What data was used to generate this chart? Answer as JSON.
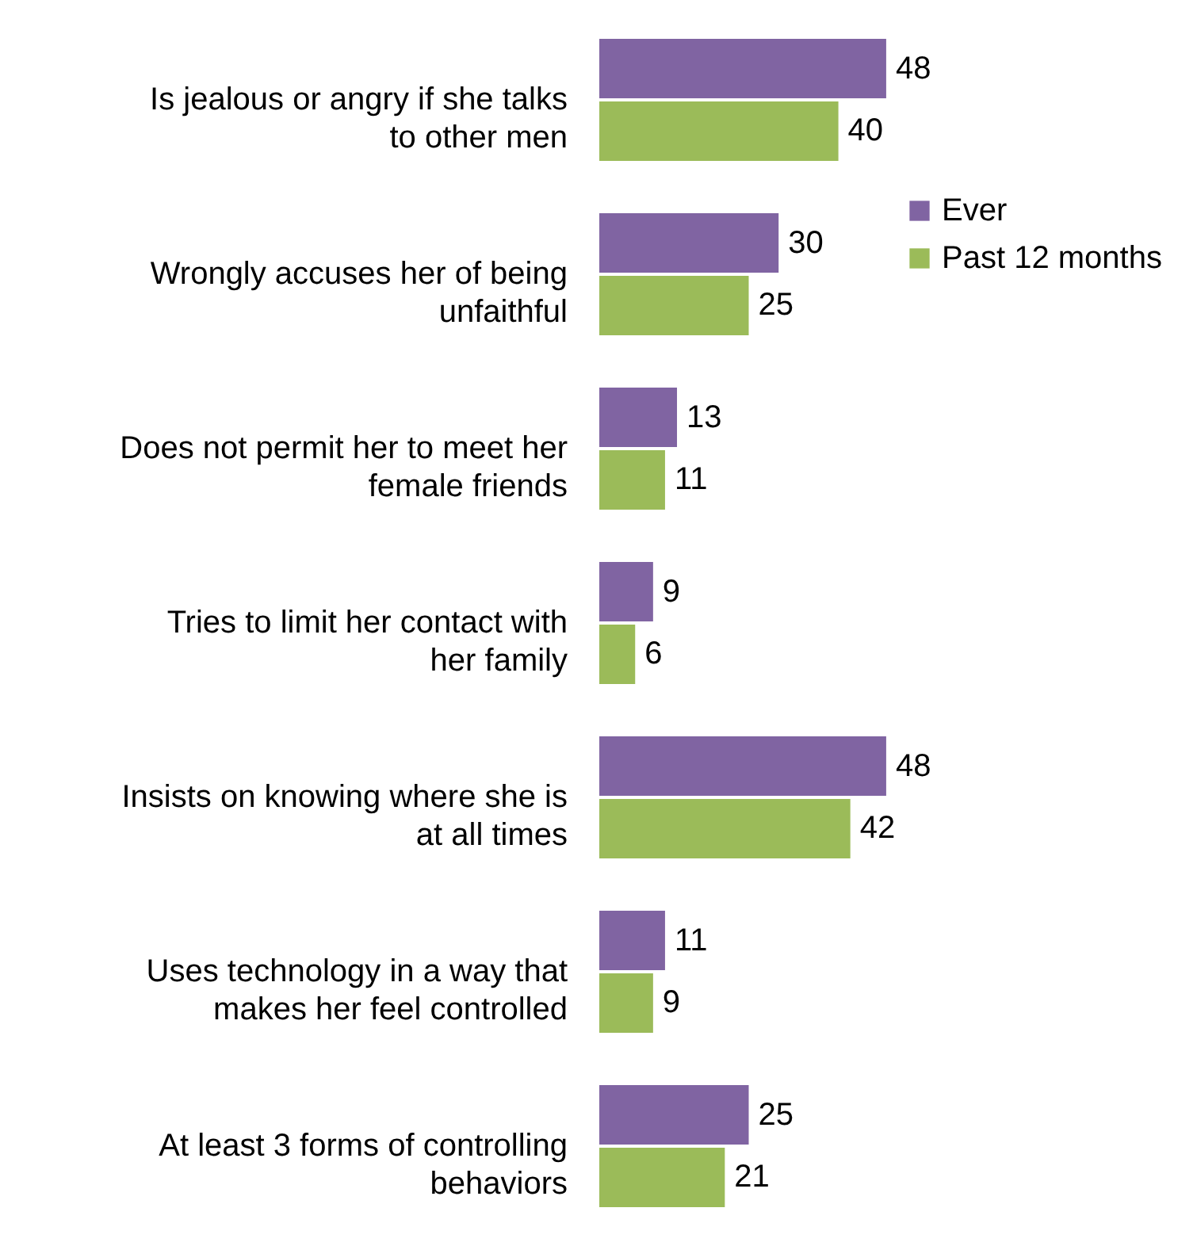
{
  "chart_data": {
    "type": "bar",
    "orientation": "horizontal",
    "categories": [
      "Is jealous or angry if she talks to other men",
      "Wrongly accuses her of being unfaithful",
      "Does not permit her to meet her female friends",
      "Tries to limit her contact with her family",
      "Insists on knowing where she is at all times",
      "Uses technology in a way that makes her feel controlled",
      "At least 3 forms of controlling behaviors"
    ],
    "series": [
      {
        "name": "Ever",
        "color": "#8064a2",
        "values": [
          48,
          30,
          13,
          9,
          48,
          11,
          25
        ]
      },
      {
        "name": "Past 12 months",
        "color": "#9bbb59",
        "values": [
          40,
          25,
          11,
          6,
          42,
          9,
          21
        ]
      }
    ],
    "xlim": [
      0,
      100
    ],
    "data_labels": true,
    "legend": "right"
  }
}
